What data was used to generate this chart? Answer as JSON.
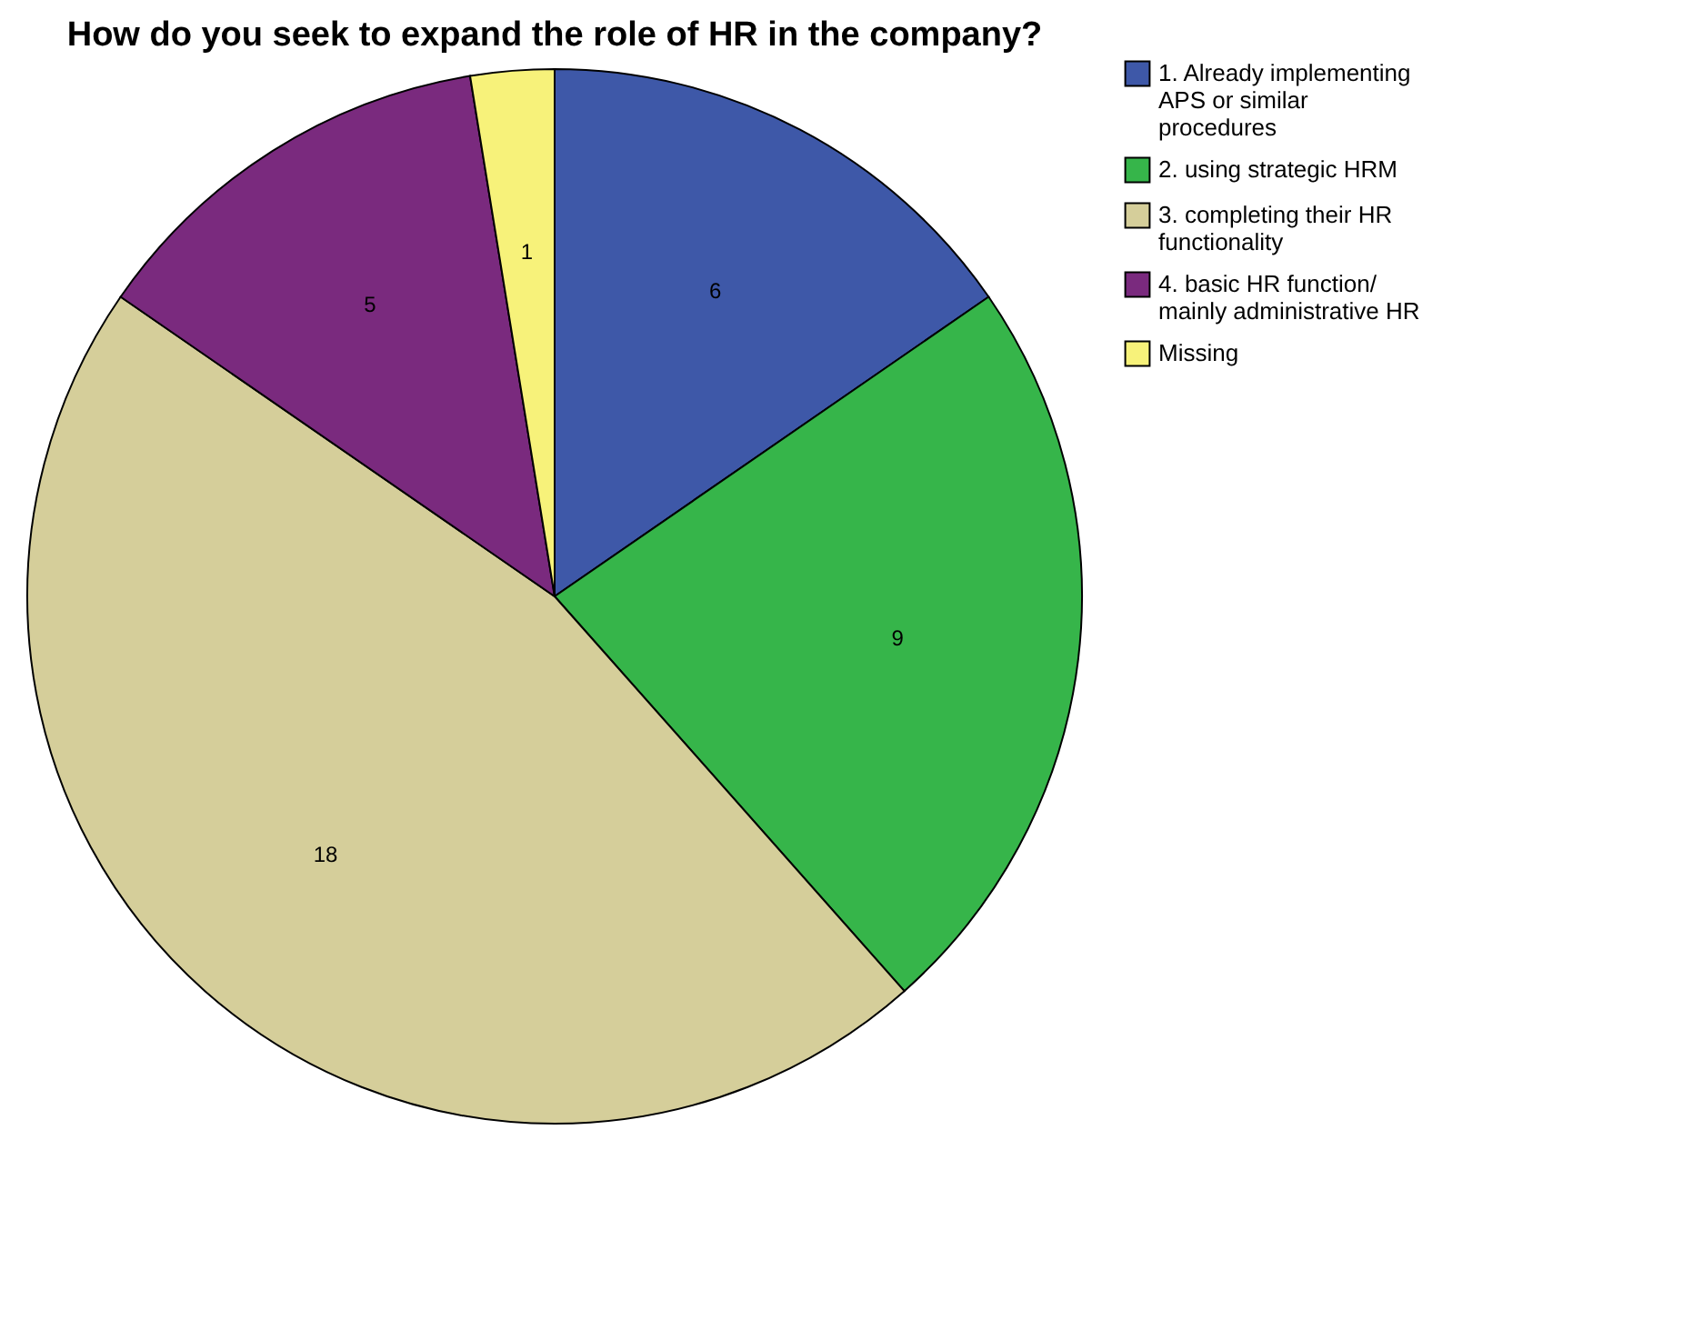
{
  "chart_data": {
    "type": "pie",
    "title": "How do you seek to expand the role of HR in the company?",
    "categories": [
      "1. Already implementing APS or similar procedures",
      "2. using strategic HRM",
      "3. completing their HR functionality",
      "4. basic HR function/ mainly administrative HR",
      "Missing"
    ],
    "values": [
      6,
      9,
      18,
      5,
      1
    ],
    "colors": [
      "#3e58a8",
      "#36b54a",
      "#d5ce9a",
      "#7a2a7e",
      "#f7f27a"
    ],
    "data_labels": true,
    "legend": "top right"
  }
}
